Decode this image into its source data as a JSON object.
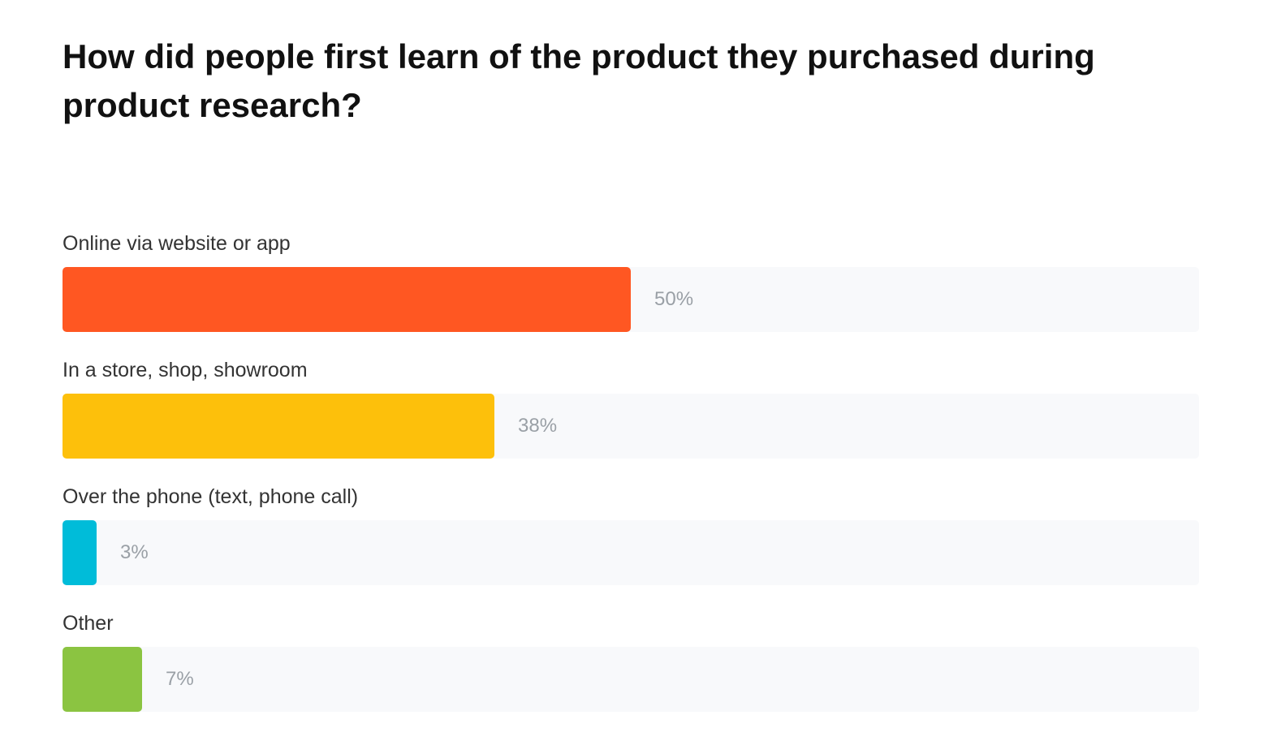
{
  "chart_data": {
    "type": "bar",
    "orientation": "horizontal",
    "title": "How did people first learn of the product they purchased during product research?",
    "categories": [
      "Online via website or app",
      "In a store, shop, showroom",
      "Over the phone (text, phone call)",
      "Other"
    ],
    "values": [
      50,
      38,
      3,
      7
    ],
    "value_labels": [
      "50%",
      "38%",
      "3%",
      "7%"
    ],
    "colors": [
      "#ff5722",
      "#fdc00b",
      "#00bcd9",
      "#8bc441"
    ],
    "track_color": "#f8f9fb",
    "xlim": [
      0,
      100
    ],
    "grid": false,
    "legend": "none"
  }
}
